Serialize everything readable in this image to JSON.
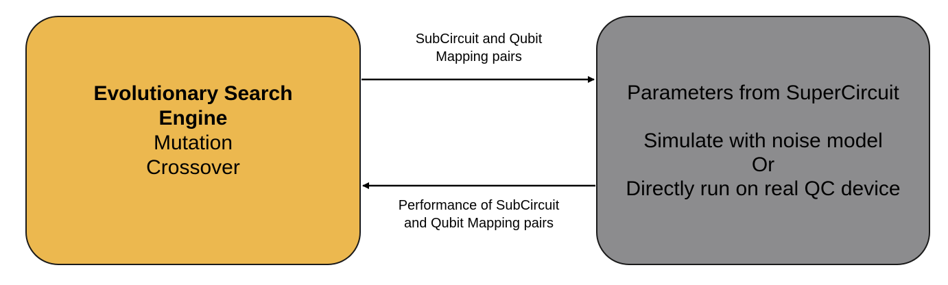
{
  "left_box": {
    "title_line1": "Evolutionary Search",
    "title_line2": "Engine",
    "item1": "Mutation",
    "item2": "Crossover",
    "fill": "#ecb84f"
  },
  "right_box": {
    "line1": "Parameters from SuperCircuit",
    "line2": "Simulate with noise model",
    "line3": "Or",
    "line4": "Directly run on real QC device",
    "fill": "#8c8c8e"
  },
  "top_arrow": {
    "label_line1": "SubCircuit and Qubit",
    "label_line2": "Mapping pairs"
  },
  "bottom_arrow": {
    "label_line1": "Performance of SubCircuit",
    "label_line2": "and Qubit Mapping pairs"
  }
}
